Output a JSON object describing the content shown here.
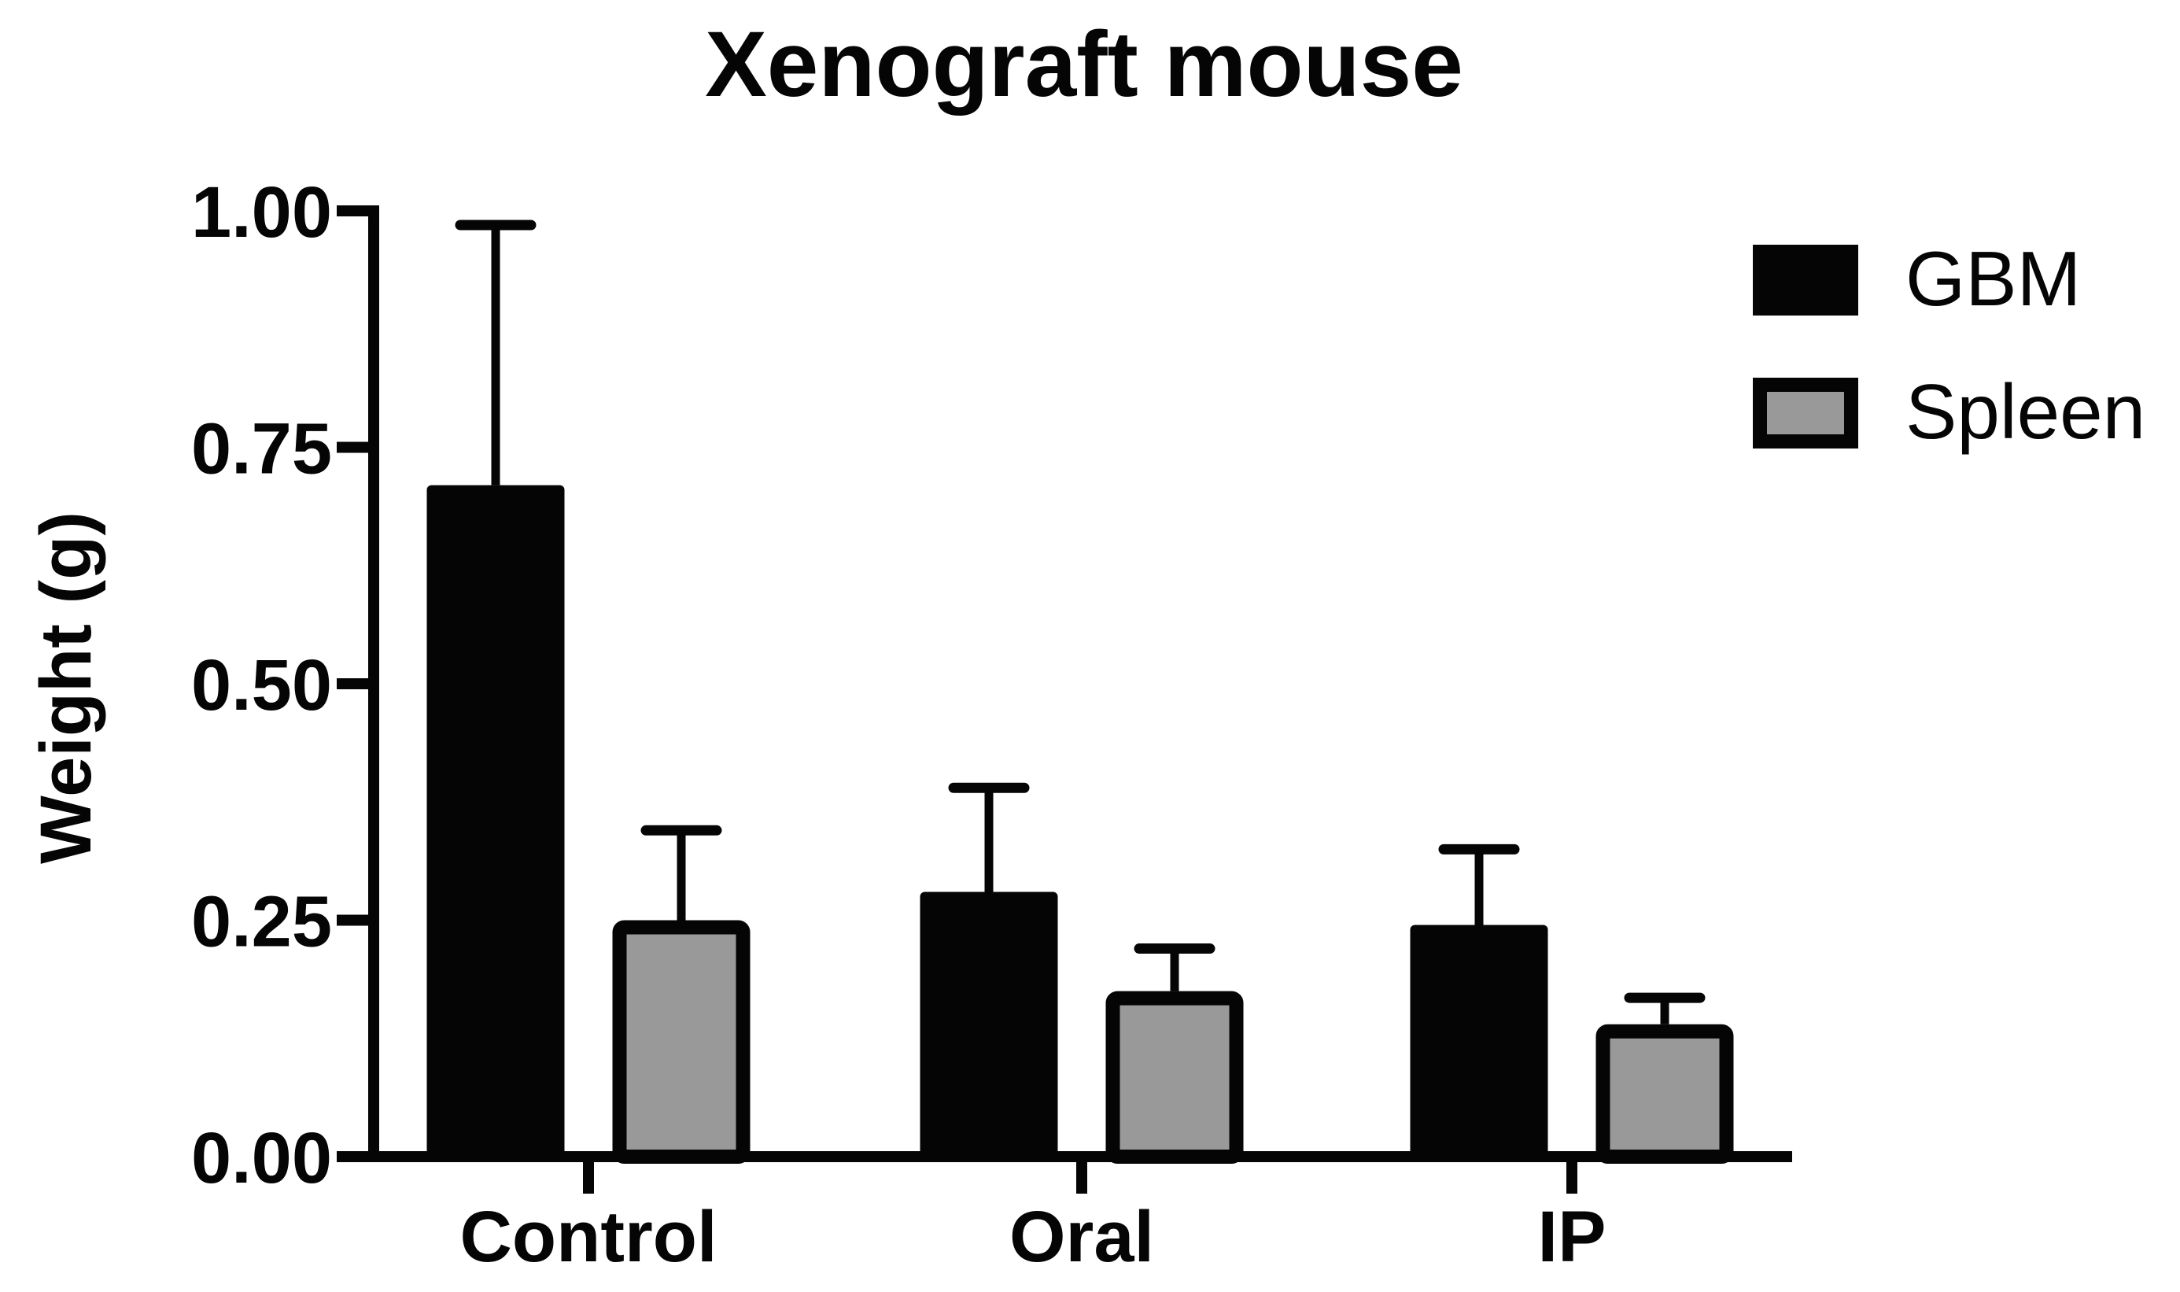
{
  "chart_data": {
    "type": "bar",
    "title": "Xenograft mouse",
    "xlabel": "",
    "ylabel": "Weight (g)",
    "ylim": [
      0,
      1.0
    ],
    "yticks": [
      0.0,
      0.25,
      0.5,
      0.75,
      1.0
    ],
    "ytick_labels": [
      "0.00",
      "0.25",
      "0.50",
      "0.75",
      "1.00"
    ],
    "categories": [
      "Control",
      "Oral",
      "IP"
    ],
    "series": [
      {
        "name": "GBM",
        "values": [
          0.71,
          0.28,
          0.245
        ],
        "error_upper": [
          0.985,
          0.39,
          0.325
        ],
        "fill": "#050505",
        "stroke": "#050505"
      },
      {
        "name": "Spleen",
        "values": [
          0.25,
          0.175,
          0.14
        ],
        "error_upper": [
          0.345,
          0.22,
          0.168
        ],
        "fill": "#999999",
        "stroke": "#050505"
      }
    ],
    "error_bars": "upper only (mean + error)",
    "grid": false,
    "legend_position": "upper right, outside plot"
  },
  "colors": {
    "axis": "#050505",
    "background": "#ffffff",
    "gbm": "#050505",
    "spleen": "#999999"
  }
}
